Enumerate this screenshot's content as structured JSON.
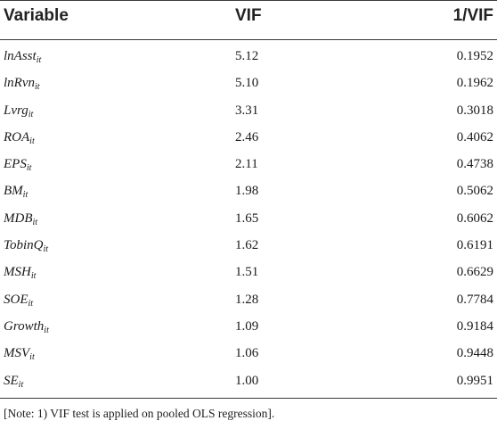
{
  "table": {
    "headers": {
      "variable": "Variable",
      "vif": "VIF",
      "inv_vif": "1/VIF"
    },
    "rows": [
      {
        "var": "lnAsst",
        "sub": "it",
        "vif": "5.12",
        "inv": "0.1952"
      },
      {
        "var": "lnRvn",
        "sub": "it",
        "vif": "5.10",
        "inv": "0.1962"
      },
      {
        "var": "Lvrg",
        "sub": "it",
        "vif": "3.31",
        "inv": "0.3018"
      },
      {
        "var": "ROA",
        "sub": "it",
        "vif": "2.46",
        "inv": "0.4062"
      },
      {
        "var": "EPS",
        "sub": "it",
        "vif": "2.11",
        "inv": "0.4738"
      },
      {
        "var": "BM",
        "sub": "it",
        "vif": "1.98",
        "inv": "0.5062"
      },
      {
        "var": "MDB",
        "sub": "it",
        "vif": "1.65",
        "inv": "0.6062"
      },
      {
        "var": "TobinQ",
        "sub": "it",
        "vif": "1.62",
        "inv": "0.6191"
      },
      {
        "var": "MSH",
        "sub": "it",
        "vif": "1.51",
        "inv": "0.6629"
      },
      {
        "var": "SOE",
        "sub": "it",
        "vif": "1.28",
        "inv": "0.7784"
      },
      {
        "var": "Growth",
        "sub": "it",
        "vif": "1.09",
        "inv": "0.9184"
      },
      {
        "var": "MSV",
        "sub": "it",
        "vif": "1.06",
        "inv": "0.9448"
      },
      {
        "var": "SE",
        "sub": "it",
        "vif": "1.00",
        "inv": "0.9951"
      }
    ],
    "note": "[Note: 1) VIF test is applied on pooled OLS regression]."
  }
}
